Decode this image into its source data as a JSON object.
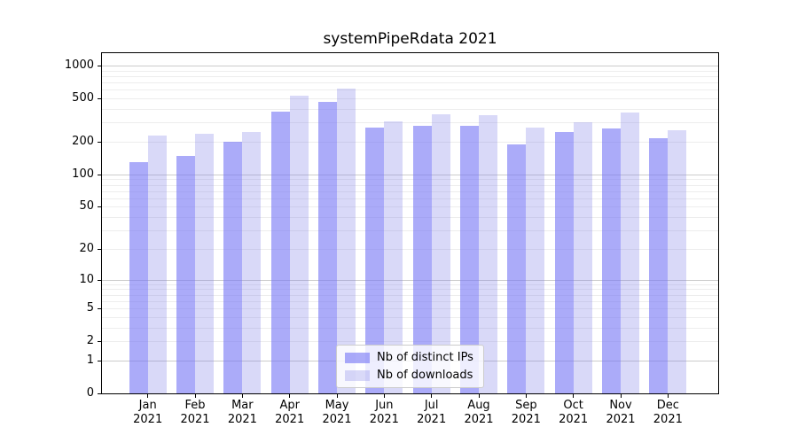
{
  "chart_data": {
    "type": "bar",
    "title": "systemPipeRdata 2021",
    "categories": [
      "Jan 2021",
      "Feb 2021",
      "Mar 2021",
      "Apr 2021",
      "May 2021",
      "Jun 2021",
      "Jul 2021",
      "Aug 2021",
      "Sep 2021",
      "Oct 2021",
      "Nov 2021",
      "Dec 2021"
    ],
    "series": [
      {
        "name": "Nb of distinct IPs",
        "color": "#7373f5",
        "alpha": 0.6,
        "values": [
          130,
          149,
          200,
          378,
          464,
          268,
          282,
          279,
          188,
          245,
          265,
          217
        ]
      },
      {
        "name": "Nb of downloads",
        "color": "#8080e8",
        "alpha": 0.3,
        "values": [
          227,
          237,
          245,
          531,
          610,
          309,
          355,
          353,
          272,
          300,
          369,
          257
        ]
      }
    ],
    "xlabel": "",
    "ylabel": "",
    "yscale": "log1p",
    "ylim": [
      0,
      1300
    ],
    "yticks": [
      0,
      1,
      2,
      5,
      10,
      20,
      50,
      100,
      200,
      500,
      1000
    ],
    "grid": true,
    "grid_major_values": [
      1,
      10,
      100,
      1000
    ],
    "grid_minor_values": [
      2,
      3,
      4,
      5,
      6,
      7,
      8,
      9,
      20,
      30,
      40,
      50,
      60,
      70,
      80,
      90,
      200,
      300,
      400,
      500,
      600,
      700,
      800,
      900
    ],
    "legend_position": "inside-bottom-center",
    "colors": {
      "grid_major": "#cccccc",
      "grid_minor": "#ededed",
      "spine": "#000000",
      "background": "#ffffff",
      "text": "#000000"
    }
  }
}
